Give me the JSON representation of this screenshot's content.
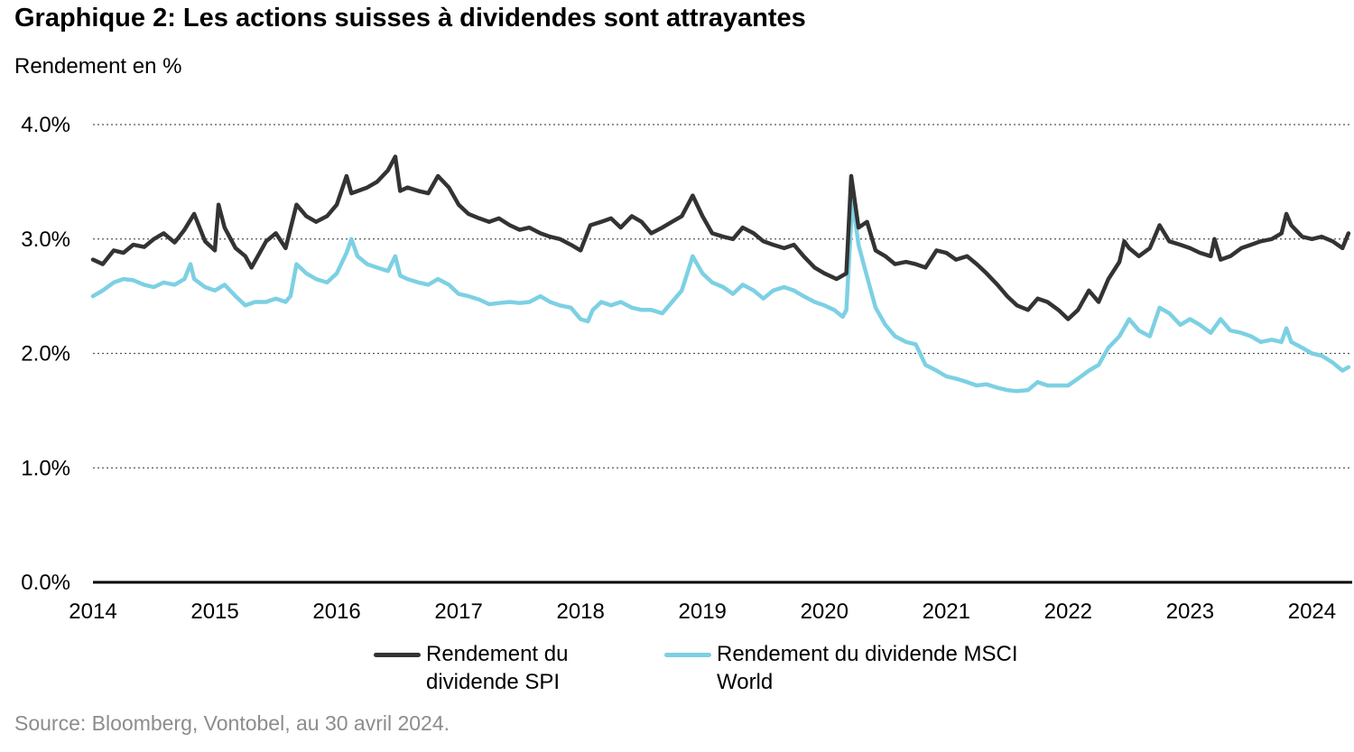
{
  "header": {
    "title": "Graphique 2: Les actions suisses à dividendes sont attrayantes",
    "unit_label": "Rendement en %"
  },
  "footer": {
    "source": "Source: Bloomberg, Vontobel, au 30 avril 2024."
  },
  "colors": {
    "spi": "#333333",
    "msci": "#7dd0e3",
    "axis": "#000000",
    "grid": "#555555"
  },
  "chart_data": {
    "type": "line",
    "title": "Graphique 2: Les actions suisses à dividendes sont attrayantes",
    "ylabel": "Rendement en %",
    "xlabel": "",
    "xlim": [
      2014.0,
      2024.33
    ],
    "ylim": [
      0,
      4
    ],
    "x_ticks": [
      "2014",
      "2015",
      "2016",
      "2017",
      "2018",
      "2019",
      "2020",
      "2021",
      "2022",
      "2023",
      "2024"
    ],
    "y_ticks": [
      "0.0%",
      "1.0%",
      "2.0%",
      "3.0%",
      "4.0%"
    ],
    "grid": "horizontal dotted",
    "legend_position": "bottom",
    "series": [
      {
        "name": "Rendement du dividende SPI",
        "color": "#333333",
        "points": [
          [
            2014.0,
            2.82
          ],
          [
            2014.08,
            2.78
          ],
          [
            2014.17,
            2.9
          ],
          [
            2014.25,
            2.88
          ],
          [
            2014.33,
            2.95
          ],
          [
            2014.42,
            2.93
          ],
          [
            2014.5,
            3.0
          ],
          [
            2014.58,
            3.05
          ],
          [
            2014.67,
            2.97
          ],
          [
            2014.75,
            3.08
          ],
          [
            2014.83,
            3.22
          ],
          [
            2014.92,
            2.98
          ],
          [
            2015.0,
            2.9
          ],
          [
            2015.03,
            3.3
          ],
          [
            2015.08,
            3.1
          ],
          [
            2015.17,
            2.92
          ],
          [
            2015.25,
            2.85
          ],
          [
            2015.3,
            2.75
          ],
          [
            2015.42,
            2.98
          ],
          [
            2015.5,
            3.05
          ],
          [
            2015.58,
            2.92
          ],
          [
            2015.67,
            3.3
          ],
          [
            2015.75,
            3.2
          ],
          [
            2015.83,
            3.15
          ],
          [
            2015.92,
            3.2
          ],
          [
            2016.0,
            3.3
          ],
          [
            2016.08,
            3.55
          ],
          [
            2016.12,
            3.4
          ],
          [
            2016.25,
            3.45
          ],
          [
            2016.33,
            3.5
          ],
          [
            2016.42,
            3.6
          ],
          [
            2016.48,
            3.72
          ],
          [
            2016.52,
            3.42
          ],
          [
            2016.58,
            3.45
          ],
          [
            2016.67,
            3.42
          ],
          [
            2016.75,
            3.4
          ],
          [
            2016.83,
            3.55
          ],
          [
            2016.92,
            3.45
          ],
          [
            2017.0,
            3.3
          ],
          [
            2017.08,
            3.22
          ],
          [
            2017.17,
            3.18
          ],
          [
            2017.25,
            3.15
          ],
          [
            2017.33,
            3.18
          ],
          [
            2017.42,
            3.12
          ],
          [
            2017.5,
            3.08
          ],
          [
            2017.58,
            3.1
          ],
          [
            2017.67,
            3.05
          ],
          [
            2017.75,
            3.02
          ],
          [
            2017.83,
            3.0
          ],
          [
            2017.92,
            2.95
          ],
          [
            2018.0,
            2.9
          ],
          [
            2018.08,
            3.12
          ],
          [
            2018.17,
            3.15
          ],
          [
            2018.25,
            3.18
          ],
          [
            2018.33,
            3.1
          ],
          [
            2018.42,
            3.2
          ],
          [
            2018.5,
            3.15
          ],
          [
            2018.58,
            3.05
          ],
          [
            2018.67,
            3.1
          ],
          [
            2018.75,
            3.15
          ],
          [
            2018.83,
            3.2
          ],
          [
            2018.92,
            3.38
          ],
          [
            2019.0,
            3.2
          ],
          [
            2019.08,
            3.05
          ],
          [
            2019.17,
            3.02
          ],
          [
            2019.25,
            3.0
          ],
          [
            2019.33,
            3.1
          ],
          [
            2019.42,
            3.05
          ],
          [
            2019.5,
            2.98
          ],
          [
            2019.58,
            2.95
          ],
          [
            2019.67,
            2.92
          ],
          [
            2019.75,
            2.95
          ],
          [
            2019.83,
            2.85
          ],
          [
            2019.92,
            2.75
          ],
          [
            2020.0,
            2.7
          ],
          [
            2020.1,
            2.65
          ],
          [
            2020.18,
            2.7
          ],
          [
            2020.22,
            3.55
          ],
          [
            2020.28,
            3.1
          ],
          [
            2020.35,
            3.15
          ],
          [
            2020.42,
            2.9
          ],
          [
            2020.5,
            2.85
          ],
          [
            2020.58,
            2.78
          ],
          [
            2020.67,
            2.8
          ],
          [
            2020.75,
            2.78
          ],
          [
            2020.83,
            2.75
          ],
          [
            2020.92,
            2.9
          ],
          [
            2021.0,
            2.88
          ],
          [
            2021.08,
            2.82
          ],
          [
            2021.17,
            2.85
          ],
          [
            2021.25,
            2.78
          ],
          [
            2021.33,
            2.7
          ],
          [
            2021.42,
            2.6
          ],
          [
            2021.5,
            2.5
          ],
          [
            2021.58,
            2.42
          ],
          [
            2021.67,
            2.38
          ],
          [
            2021.75,
            2.48
          ],
          [
            2021.83,
            2.45
          ],
          [
            2021.92,
            2.38
          ],
          [
            2022.0,
            2.3
          ],
          [
            2022.08,
            2.38
          ],
          [
            2022.17,
            2.55
          ],
          [
            2022.25,
            2.45
          ],
          [
            2022.33,
            2.65
          ],
          [
            2022.42,
            2.8
          ],
          [
            2022.46,
            2.98
          ],
          [
            2022.5,
            2.92
          ],
          [
            2022.58,
            2.85
          ],
          [
            2022.67,
            2.92
          ],
          [
            2022.75,
            3.12
          ],
          [
            2022.83,
            2.98
          ],
          [
            2022.92,
            2.95
          ],
          [
            2023.0,
            2.92
          ],
          [
            2023.08,
            2.88
          ],
          [
            2023.17,
            2.85
          ],
          [
            2023.2,
            3.0
          ],
          [
            2023.25,
            2.82
          ],
          [
            2023.33,
            2.85
          ],
          [
            2023.42,
            2.92
          ],
          [
            2023.5,
            2.95
          ],
          [
            2023.58,
            2.98
          ],
          [
            2023.67,
            3.0
          ],
          [
            2023.75,
            3.05
          ],
          [
            2023.79,
            3.22
          ],
          [
            2023.83,
            3.12
          ],
          [
            2023.92,
            3.02
          ],
          [
            2024.0,
            3.0
          ],
          [
            2024.08,
            3.02
          ],
          [
            2024.17,
            2.98
          ],
          [
            2024.25,
            2.92
          ],
          [
            2024.3,
            3.05
          ]
        ]
      },
      {
        "name": "Rendement du dividende MSCI World",
        "color": "#7dd0e3",
        "points": [
          [
            2014.0,
            2.5
          ],
          [
            2014.08,
            2.55
          ],
          [
            2014.17,
            2.62
          ],
          [
            2014.25,
            2.65
          ],
          [
            2014.33,
            2.64
          ],
          [
            2014.42,
            2.6
          ],
          [
            2014.5,
            2.58
          ],
          [
            2014.58,
            2.62
          ],
          [
            2014.67,
            2.6
          ],
          [
            2014.75,
            2.65
          ],
          [
            2014.8,
            2.78
          ],
          [
            2014.83,
            2.65
          ],
          [
            2014.92,
            2.58
          ],
          [
            2015.0,
            2.55
          ],
          [
            2015.08,
            2.6
          ],
          [
            2015.17,
            2.5
          ],
          [
            2015.25,
            2.42
          ],
          [
            2015.33,
            2.45
          ],
          [
            2015.42,
            2.45
          ],
          [
            2015.5,
            2.48
          ],
          [
            2015.58,
            2.45
          ],
          [
            2015.62,
            2.5
          ],
          [
            2015.67,
            2.78
          ],
          [
            2015.75,
            2.7
          ],
          [
            2015.83,
            2.65
          ],
          [
            2015.92,
            2.62
          ],
          [
            2016.0,
            2.7
          ],
          [
            2016.08,
            2.88
          ],
          [
            2016.12,
            3.0
          ],
          [
            2016.17,
            2.85
          ],
          [
            2016.25,
            2.78
          ],
          [
            2016.33,
            2.75
          ],
          [
            2016.42,
            2.72
          ],
          [
            2016.48,
            2.85
          ],
          [
            2016.52,
            2.68
          ],
          [
            2016.58,
            2.65
          ],
          [
            2016.67,
            2.62
          ],
          [
            2016.75,
            2.6
          ],
          [
            2016.83,
            2.65
          ],
          [
            2016.92,
            2.6
          ],
          [
            2017.0,
            2.52
          ],
          [
            2017.08,
            2.5
          ],
          [
            2017.17,
            2.47
          ],
          [
            2017.25,
            2.43
          ],
          [
            2017.33,
            2.44
          ],
          [
            2017.42,
            2.45
          ],
          [
            2017.5,
            2.44
          ],
          [
            2017.58,
            2.45
          ],
          [
            2017.67,
            2.5
          ],
          [
            2017.75,
            2.45
          ],
          [
            2017.83,
            2.42
          ],
          [
            2017.92,
            2.4
          ],
          [
            2018.0,
            2.3
          ],
          [
            2018.06,
            2.28
          ],
          [
            2018.1,
            2.38
          ],
          [
            2018.17,
            2.45
          ],
          [
            2018.25,
            2.42
          ],
          [
            2018.33,
            2.45
          ],
          [
            2018.42,
            2.4
          ],
          [
            2018.5,
            2.38
          ],
          [
            2018.58,
            2.38
          ],
          [
            2018.67,
            2.35
          ],
          [
            2018.75,
            2.45
          ],
          [
            2018.83,
            2.55
          ],
          [
            2018.92,
            2.85
          ],
          [
            2019.0,
            2.7
          ],
          [
            2019.08,
            2.62
          ],
          [
            2019.17,
            2.58
          ],
          [
            2019.25,
            2.52
          ],
          [
            2019.33,
            2.6
          ],
          [
            2019.42,
            2.55
          ],
          [
            2019.5,
            2.48
          ],
          [
            2019.58,
            2.55
          ],
          [
            2019.67,
            2.58
          ],
          [
            2019.75,
            2.55
          ],
          [
            2019.83,
            2.5
          ],
          [
            2019.92,
            2.45
          ],
          [
            2020.0,
            2.42
          ],
          [
            2020.08,
            2.38
          ],
          [
            2020.15,
            2.32
          ],
          [
            2020.18,
            2.38
          ],
          [
            2020.23,
            3.35
          ],
          [
            2020.28,
            2.95
          ],
          [
            2020.33,
            2.75
          ],
          [
            2020.42,
            2.4
          ],
          [
            2020.5,
            2.25
          ],
          [
            2020.58,
            2.15
          ],
          [
            2020.67,
            2.1
          ],
          [
            2020.75,
            2.08
          ],
          [
            2020.83,
            1.9
          ],
          [
            2020.92,
            1.85
          ],
          [
            2021.0,
            1.8
          ],
          [
            2021.08,
            1.78
          ],
          [
            2021.17,
            1.75
          ],
          [
            2021.25,
            1.72
          ],
          [
            2021.33,
            1.73
          ],
          [
            2021.42,
            1.7
          ],
          [
            2021.5,
            1.68
          ],
          [
            2021.58,
            1.67
          ],
          [
            2021.67,
            1.68
          ],
          [
            2021.75,
            1.75
          ],
          [
            2021.83,
            1.72
          ],
          [
            2021.92,
            1.72
          ],
          [
            2022.0,
            1.72
          ],
          [
            2022.08,
            1.78
          ],
          [
            2022.17,
            1.85
          ],
          [
            2022.25,
            1.9
          ],
          [
            2022.33,
            2.05
          ],
          [
            2022.42,
            2.15
          ],
          [
            2022.5,
            2.3
          ],
          [
            2022.58,
            2.2
          ],
          [
            2022.67,
            2.15
          ],
          [
            2022.75,
            2.4
          ],
          [
            2022.83,
            2.35
          ],
          [
            2022.92,
            2.25
          ],
          [
            2023.0,
            2.3
          ],
          [
            2023.08,
            2.25
          ],
          [
            2023.17,
            2.18
          ],
          [
            2023.25,
            2.3
          ],
          [
            2023.33,
            2.2
          ],
          [
            2023.42,
            2.18
          ],
          [
            2023.5,
            2.15
          ],
          [
            2023.58,
            2.1
          ],
          [
            2023.67,
            2.12
          ],
          [
            2023.75,
            2.1
          ],
          [
            2023.79,
            2.22
          ],
          [
            2023.83,
            2.1
          ],
          [
            2023.92,
            2.05
          ],
          [
            2024.0,
            2.0
          ],
          [
            2024.08,
            1.98
          ],
          [
            2024.17,
            1.92
          ],
          [
            2024.25,
            1.85
          ],
          [
            2024.3,
            1.88
          ]
        ]
      }
    ]
  }
}
